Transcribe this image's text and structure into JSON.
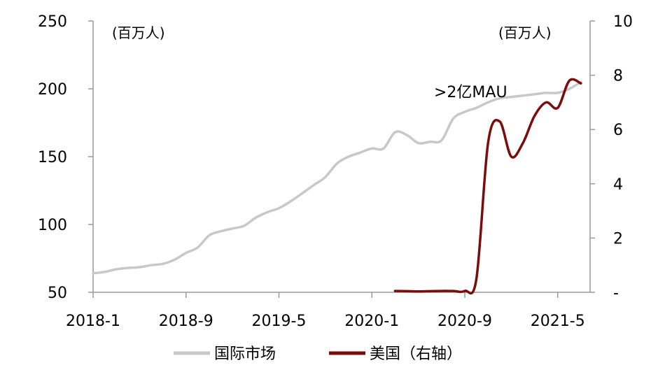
{
  "chart_data": {
    "type": "line",
    "left_unit_label": "(百万人)",
    "right_unit_label": "(百万人)",
    "annotation": ">2亿MAU",
    "x_ticks": [
      "2018-1",
      "2018-9",
      "2019-5",
      "2020-1",
      "2020-9",
      "2021-5"
    ],
    "x_range": [
      "2018-1",
      "2021-7"
    ],
    "y_left": {
      "ticks": [
        "50",
        "100",
        "150",
        "200",
        "250"
      ],
      "range": [
        50,
        250
      ]
    },
    "y_right": {
      "ticks": [
        "-",
        "2",
        "4",
        "6",
        "8",
        "10"
      ],
      "range": [
        0,
        10
      ]
    },
    "series": [
      {
        "name": "国际市场",
        "axis": "left",
        "color": "#c8c8c8",
        "points": [
          [
            "2018-1",
            64
          ],
          [
            "2018-2",
            65
          ],
          [
            "2018-3",
            67
          ],
          [
            "2018-4",
            68
          ],
          [
            "2018-5",
            68.5
          ],
          [
            "2018-6",
            70
          ],
          [
            "2018-7",
            71
          ],
          [
            "2018-8",
            74
          ],
          [
            "2018-9",
            79
          ],
          [
            "2018-10",
            83
          ],
          [
            "2018-11",
            92
          ],
          [
            "2018-12",
            95
          ],
          [
            "2019-1",
            97
          ],
          [
            "2019-2",
            99
          ],
          [
            "2019-3",
            105
          ],
          [
            "2019-4",
            109
          ],
          [
            "2019-5",
            112
          ],
          [
            "2019-6",
            117
          ],
          [
            "2019-7",
            123
          ],
          [
            "2019-8",
            129
          ],
          [
            "2019-9",
            135
          ],
          [
            "2019-10",
            145
          ],
          [
            "2019-11",
            150
          ],
          [
            "2019-12",
            153
          ],
          [
            "2020-1",
            156
          ],
          [
            "2020-2",
            156
          ],
          [
            "2020-3",
            168
          ],
          [
            "2020-4",
            166
          ],
          [
            "2020-5",
            160
          ],
          [
            "2020-6",
            161
          ],
          [
            "2020-7",
            162
          ],
          [
            "2020-8",
            178
          ],
          [
            "2020-9",
            183
          ],
          [
            "2020-10",
            186
          ],
          [
            "2020-11",
            190
          ],
          [
            "2020-12",
            193
          ],
          [
            "2021-1",
            194
          ],
          [
            "2021-2",
            195
          ],
          [
            "2021-3",
            196
          ],
          [
            "2021-4",
            197
          ],
          [
            "2021-5",
            197
          ],
          [
            "2021-6",
            200
          ],
          [
            "2021-7",
            205
          ]
        ]
      },
      {
        "name": "美国（右轴）",
        "axis": "right",
        "color": "#7b0c0c",
        "points": [
          [
            "2020-3",
            0.05
          ],
          [
            "2020-4",
            0.04
          ],
          [
            "2020-5",
            0.03
          ],
          [
            "2020-6",
            0.04
          ],
          [
            "2020-7",
            0.05
          ],
          [
            "2020-8",
            0.05
          ],
          [
            "2020-9",
            0.05
          ],
          [
            "2020-10",
            0.5
          ],
          [
            "2020-11",
            5.5
          ],
          [
            "2020-12",
            6.3
          ],
          [
            "2021-1",
            5.0
          ],
          [
            "2021-2",
            5.5
          ],
          [
            "2021-3",
            6.5
          ],
          [
            "2021-4",
            7.0
          ],
          [
            "2021-5",
            6.8
          ],
          [
            "2021-6",
            7.8
          ],
          [
            "2021-7",
            7.7
          ]
        ]
      }
    ],
    "legend": {
      "position": "bottom"
    }
  }
}
